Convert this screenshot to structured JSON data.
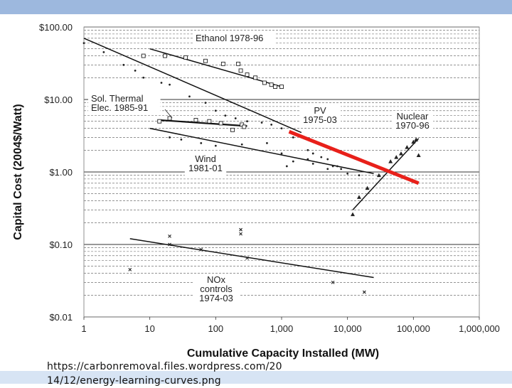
{
  "chart_data": {
    "type": "scatter",
    "title": "",
    "xlabel": "Cumulative Capacity Installed (MW)",
    "ylabel": "Capital Cost (2004$/Watt)",
    "xscale": "log",
    "yscale": "log",
    "xlim": [
      1,
      1000000
    ],
    "ylim": [
      0.01,
      100
    ],
    "x_ticks": [
      1,
      10,
      100,
      1000,
      10000,
      100000,
      1000000
    ],
    "x_tick_labels": [
      "1",
      "10",
      "100",
      "1,000",
      "10,000",
      "100,000",
      "1,000,000"
    ],
    "y_ticks": [
      0.01,
      0.1,
      1,
      10,
      100
    ],
    "y_tick_labels": [
      "$0.01",
      "$0.10",
      "$1.00",
      "$10.00",
      "$100.00"
    ],
    "grid": "dashed minor horizontal lines, solid major lines",
    "series": [
      {
        "name": "Ethanol 1978-96",
        "label_lines": [
          "Ethanol 1978-96"
        ],
        "marker": "square",
        "points": [
          [
            8,
            40
          ],
          [
            17,
            40
          ],
          [
            35,
            38
          ],
          [
            70,
            34
          ],
          [
            130,
            31
          ],
          [
            220,
            31
          ],
          [
            240,
            25
          ],
          [
            300,
            22
          ],
          [
            400,
            20
          ],
          [
            550,
            17
          ],
          [
            700,
            16
          ],
          [
            800,
            15
          ],
          [
            1000,
            15
          ]
        ],
        "fit": [
          [
            10,
            50
          ],
          [
            1000,
            15
          ]
        ]
      },
      {
        "name": "Sol. Thermal Elec. 1985-91",
        "label_lines": [
          "Sol. Thermal",
          "Elec. 1985-91"
        ],
        "marker": "square",
        "points": [
          [
            14,
            5
          ],
          [
            20,
            5.5
          ],
          [
            50,
            5.2
          ],
          [
            80,
            5
          ],
          [
            120,
            4.7
          ],
          [
            180,
            3.8
          ],
          [
            250,
            4.5
          ],
          [
            270,
            4.2
          ]
        ],
        "fit": [
          [
            14,
            5.2
          ],
          [
            300,
            4.3
          ]
        ]
      },
      {
        "name": "PV 1975-03",
        "label_lines": [
          "PV",
          "1975-03"
        ],
        "marker": "dot",
        "points": [
          [
            1,
            60
          ],
          [
            2,
            45
          ],
          [
            4,
            30
          ],
          [
            6,
            25
          ],
          [
            8,
            20
          ],
          [
            15,
            17
          ],
          [
            20,
            16
          ],
          [
            40,
            11
          ],
          [
            70,
            9
          ],
          [
            100,
            7
          ],
          [
            140,
            6
          ],
          [
            200,
            5.5
          ],
          [
            300,
            5
          ],
          [
            500,
            4.8
          ],
          [
            700,
            4.5
          ],
          [
            1000,
            4
          ],
          [
            1500,
            3
          ],
          [
            2500,
            2
          ],
          [
            3000,
            1.8
          ],
          [
            4000,
            1.6
          ],
          [
            5000,
            1.5
          ],
          [
            6000,
            1.2
          ],
          [
            8000,
            1.1
          ]
        ],
        "fit": [
          [
            1,
            70
          ],
          [
            2000,
            3.5
          ]
        ]
      },
      {
        "name": "Wind 1981-01",
        "label_lines": [
          "Wind",
          "1981-01"
        ],
        "marker": "dot",
        "points": [
          [
            20,
            3
          ],
          [
            30,
            2.8
          ],
          [
            60,
            2.5
          ],
          [
            100,
            2.3
          ],
          [
            250,
            2.4
          ],
          [
            600,
            2.5
          ],
          [
            1000,
            1.8
          ],
          [
            1200,
            1.2
          ],
          [
            1500,
            1.4
          ],
          [
            2500,
            1.5
          ],
          [
            3000,
            1.3
          ],
          [
            5000,
            1.1
          ],
          [
            7000,
            1.2
          ],
          [
            10000,
            0.95
          ],
          [
            15000,
            0.9
          ]
        ],
        "fit": [
          [
            10,
            4
          ],
          [
            25000,
            0.95
          ]
        ]
      },
      {
        "name": "Nuclear 1970-96",
        "label_lines": [
          "Nuclear",
          "1970-96"
        ],
        "marker": "triangle",
        "points": [
          [
            12000,
            0.26
          ],
          [
            15000,
            0.45
          ],
          [
            20000,
            0.6
          ],
          [
            30000,
            0.9
          ],
          [
            45000,
            1.4
          ],
          [
            55000,
            1.6
          ],
          [
            65000,
            1.8
          ],
          [
            80000,
            2.2
          ],
          [
            100000,
            2.6
          ],
          [
            110000,
            2.8
          ],
          [
            120000,
            1.7
          ]
        ],
        "fit": [
          [
            12000,
            0.3
          ],
          [
            120000,
            2.9
          ]
        ]
      },
      {
        "name": "NOx controls 1974-03",
        "label_lines": [
          "NOx",
          "controls",
          "1974-03"
        ],
        "marker": "cross",
        "points": [
          [
            5,
            0.045
          ],
          [
            20,
            0.13
          ],
          [
            20,
            0.1
          ],
          [
            60,
            0.085
          ],
          [
            240,
            0.16
          ],
          [
            240,
            0.14
          ],
          [
            300,
            0.065
          ],
          [
            6000,
            0.03
          ],
          [
            18000,
            0.022
          ]
        ],
        "fit": [
          [
            5,
            0.12
          ],
          [
            25000,
            0.035
          ]
        ]
      }
    ],
    "highlight": {
      "name": "red trend line",
      "color": "#e8201a",
      "points": [
        [
          1300,
          3.6
        ],
        [
          120000,
          0.7
        ]
      ]
    }
  },
  "source": {
    "lines": [
      "https://carbonremoval.files.wordpress.com/20",
      "14/12/energy-learning-curves.png"
    ]
  },
  "colors": {
    "top_bar": "#9db8de",
    "bottom_bar": "#d7e4f4"
  }
}
